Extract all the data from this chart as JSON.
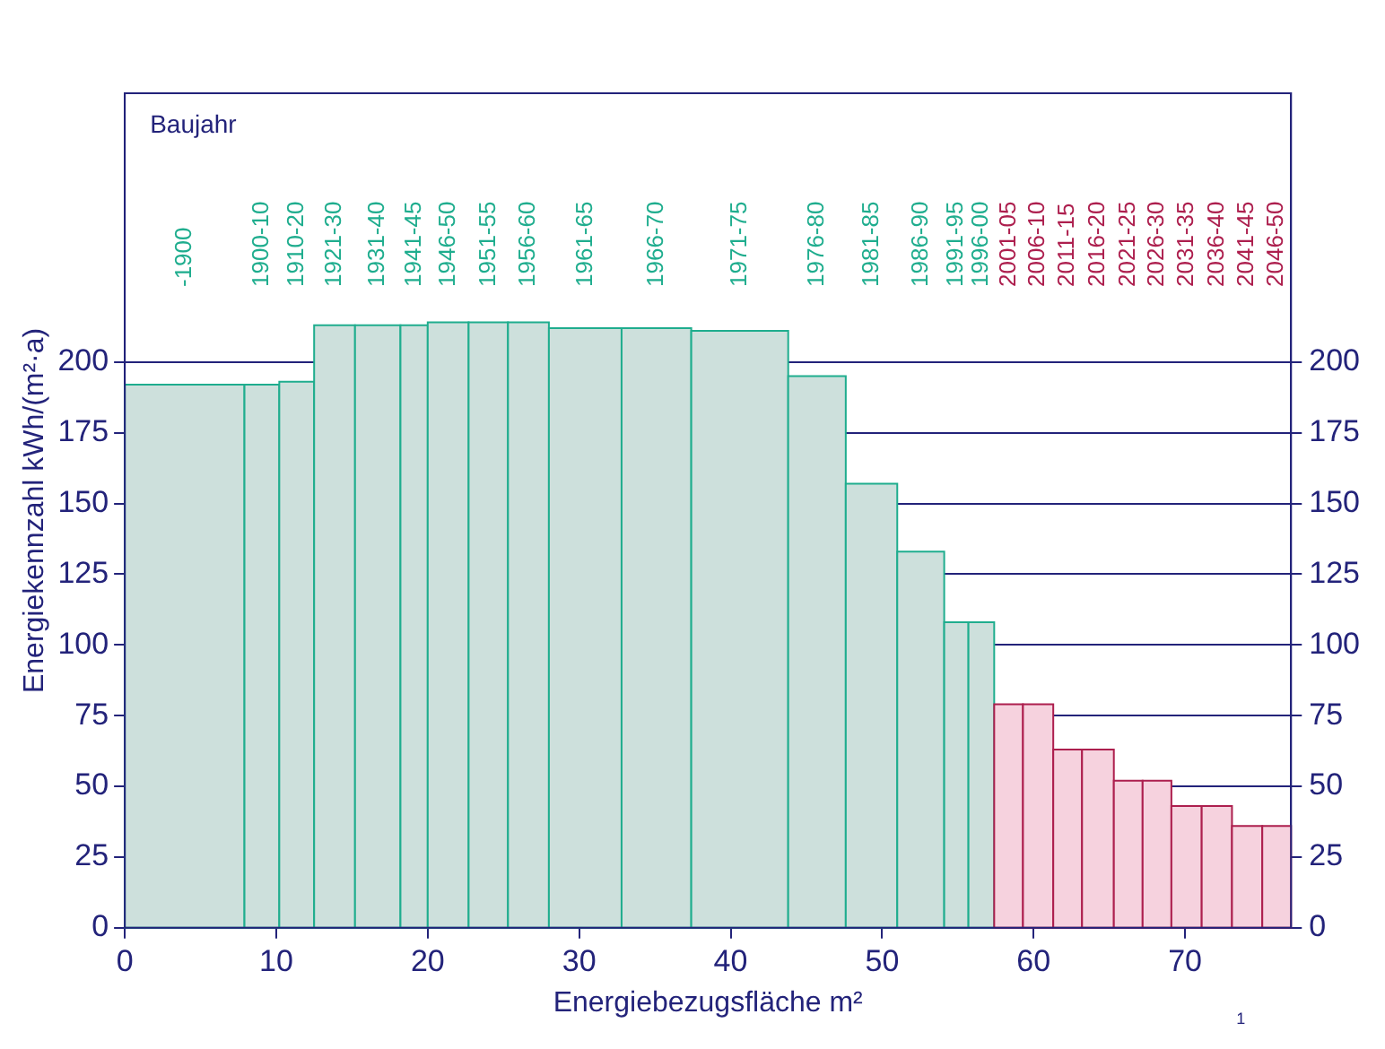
{
  "chart_data": {
    "type": "histogram",
    "xlabel": "Energiebezugsfläche m²",
    "ylabel": "Energiekennzahl kWh/(m²·a)",
    "annotations": [
      "Baujahr",
      "1"
    ],
    "categories": [
      "-1900",
      "1900-10",
      "1910-20",
      "1921-30",
      "1931-40",
      "1941-45",
      "1946-50",
      "1951-55",
      "1956-60",
      "1961-65",
      "1966-70",
      "1971-75",
      "1976-80",
      "1981-85",
      "1986-90",
      "1991-95",
      "1996-00",
      "2001-05",
      "2006-10",
      "2011-15",
      "2016-20",
      "2021-25",
      "2026-30",
      "2031-35",
      "2036-40",
      "2041-45",
      "2046-50"
    ],
    "bins": [
      0,
      7.9,
      10.2,
      12.5,
      15.2,
      18.2,
      20.0,
      22.7,
      25.3,
      28.0,
      32.8,
      37.4,
      43.8,
      47.6,
      51.0,
      54.1,
      55.7,
      57.4,
      59.3,
      61.3,
      63.2,
      65.3,
      67.2,
      69.1,
      71.1,
      73.1,
      75.1,
      77.0
    ],
    "values": [
      192,
      192,
      193,
      213,
      213,
      213,
      214,
      214,
      214,
      212,
      212,
      211,
      195,
      157,
      133,
      108,
      108,
      79,
      79,
      63,
      63,
      52,
      52,
      43,
      43,
      36,
      36
    ],
    "colors": [
      "#cde0dc",
      "#cde0dc",
      "#cde0dc",
      "#cde0dc",
      "#cde0dc",
      "#cde0dc",
      "#cde0dc",
      "#cde0dc",
      "#cde0dc",
      "#cde0dc",
      "#cde0dc",
      "#cde0dc",
      "#cde0dc",
      "#cde0dc",
      "#cde0dc",
      "#cde0dc",
      "#cde0dc",
      "#f6d2de",
      "#f6d2de",
      "#f6d2de",
      "#f6d2de",
      "#f6d2de",
      "#f6d2de",
      "#f6d2de",
      "#f6d2de",
      "#f6d2de",
      "#f6d2de"
    ],
    "xlim": [
      0,
      77
    ],
    "xticks": [
      0,
      10,
      20,
      30,
      40,
      50,
      60,
      70
    ],
    "ylim": [
      0,
      295
    ],
    "yticks": [
      0,
      25,
      50,
      75,
      100,
      125,
      150,
      175,
      200
    ],
    "y2lim": [
      0,
      295
    ],
    "y2ticks": [
      0,
      25,
      50,
      75,
      100,
      125,
      150,
      175,
      200
    ],
    "grid": "y"
  }
}
